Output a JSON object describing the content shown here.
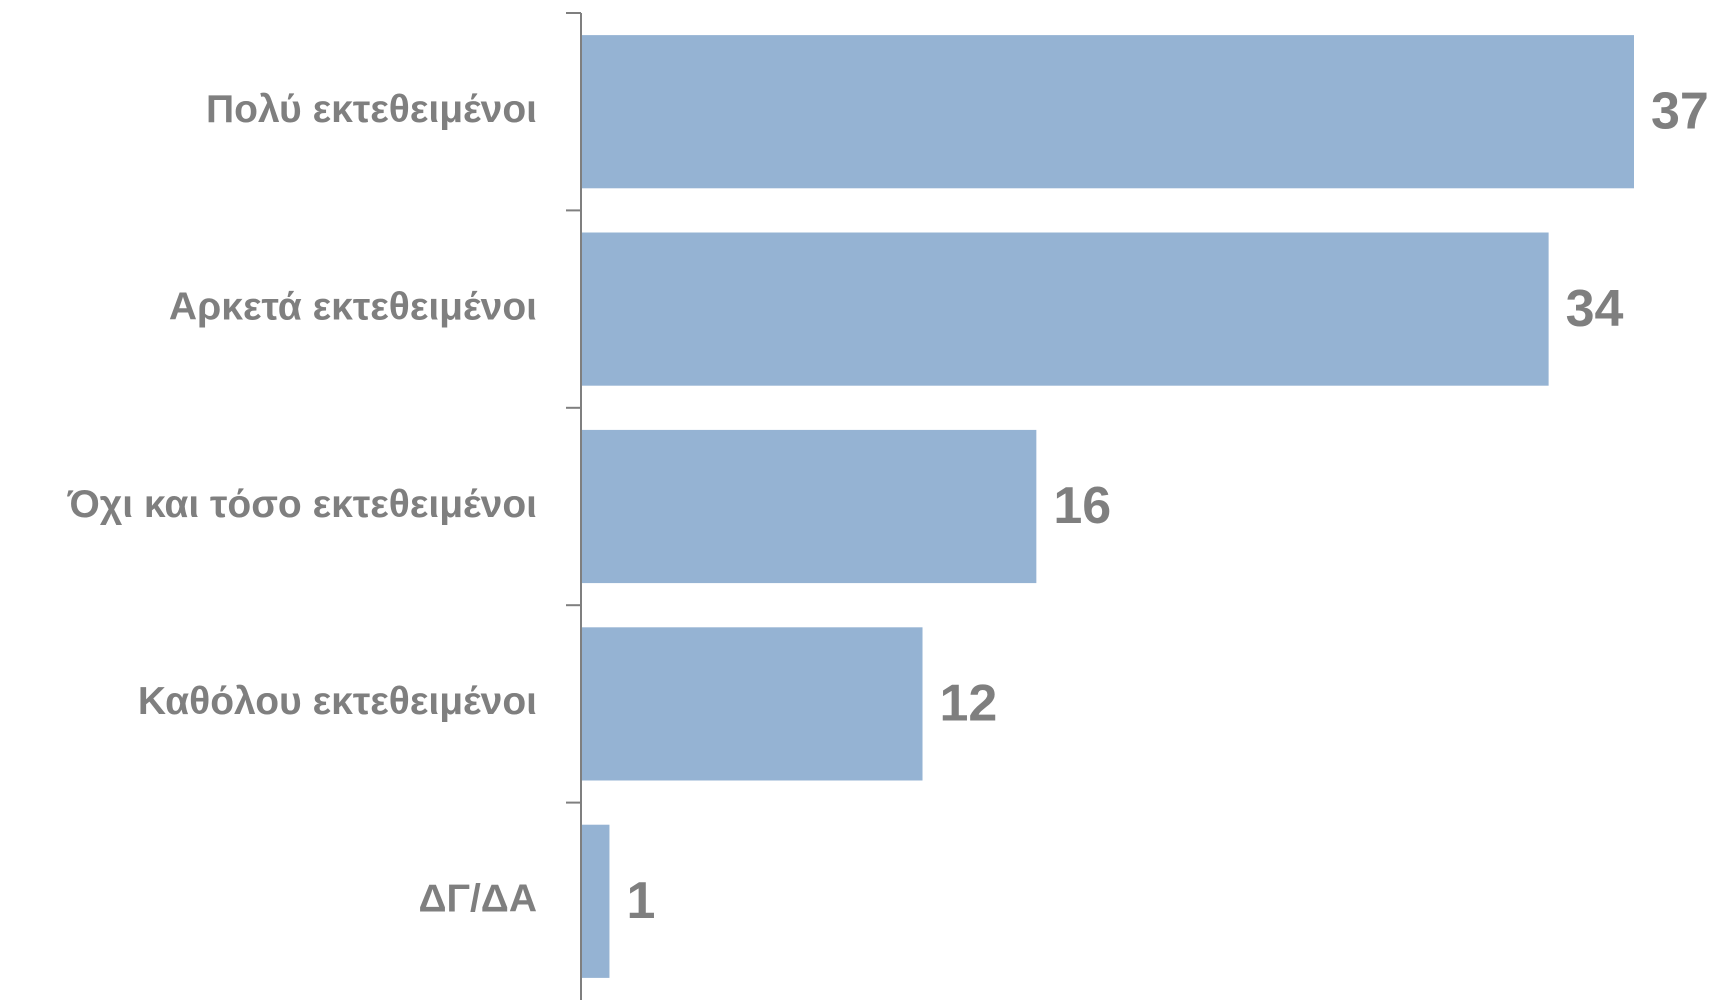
{
  "chart_data": {
    "type": "barh",
    "categories": [
      "Πολύ εκτεθειμένοι",
      "Αρκετά εκτεθειμένοι",
      "Όχι και τόσο εκτεθειμένοι",
      "Καθόλου εκτεθειμένοι",
      "ΔΓ/ΔΑ"
    ],
    "values": [
      37,
      34,
      16,
      12,
      1
    ],
    "color": "#95b3d3"
  }
}
